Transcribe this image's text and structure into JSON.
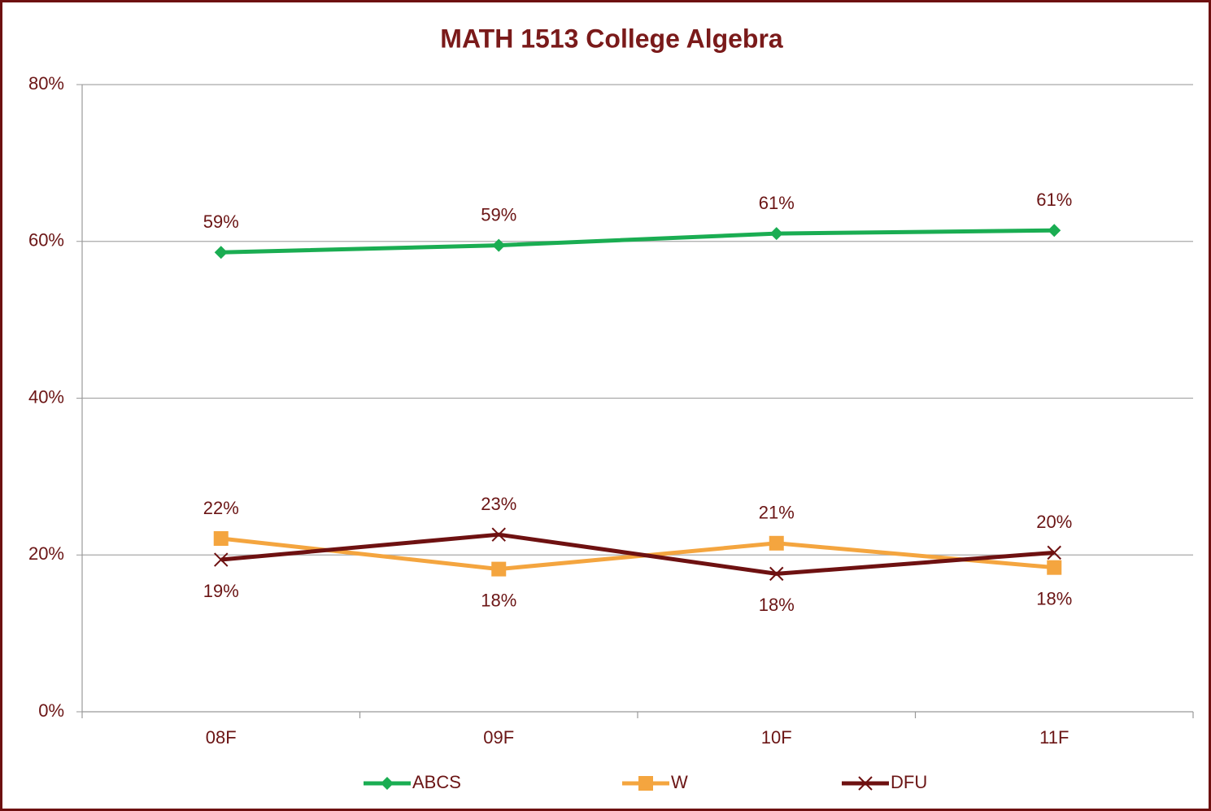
{
  "chart_data": {
    "type": "line",
    "title": "MATH 1513  College Algebra",
    "categories": [
      "08F",
      "09F",
      "10F",
      "11F"
    ],
    "series": [
      {
        "name": "ABCS",
        "color": "#1aad52",
        "marker": "diamond",
        "values": [
          58.6,
          59.5,
          61.0,
          61.4
        ],
        "value_labels": [
          "59%",
          "59%",
          "61%",
          "61%"
        ]
      },
      {
        "name": "W",
        "color": "#f4a53f",
        "marker": "square",
        "values": [
          22.1,
          18.2,
          21.5,
          18.4
        ],
        "value_labels": [
          "22%",
          "18%",
          "21%",
          "18%"
        ]
      },
      {
        "name": "DFU",
        "color": "#6e1111",
        "marker": "x",
        "values": [
          19.4,
          22.6,
          17.6,
          20.3
        ],
        "value_labels": [
          "19%",
          "23%",
          "18%",
          "20%"
        ]
      }
    ],
    "ylim": [
      0,
      80
    ],
    "yticks": [
      {
        "value": 0,
        "label": "0%"
      },
      {
        "value": 20,
        "label": "20%"
      },
      {
        "value": 40,
        "label": "40%"
      },
      {
        "value": 60,
        "label": "60%"
      },
      {
        "value": 80,
        "label": "80%"
      }
    ],
    "grid": true,
    "legend": "bottom"
  }
}
